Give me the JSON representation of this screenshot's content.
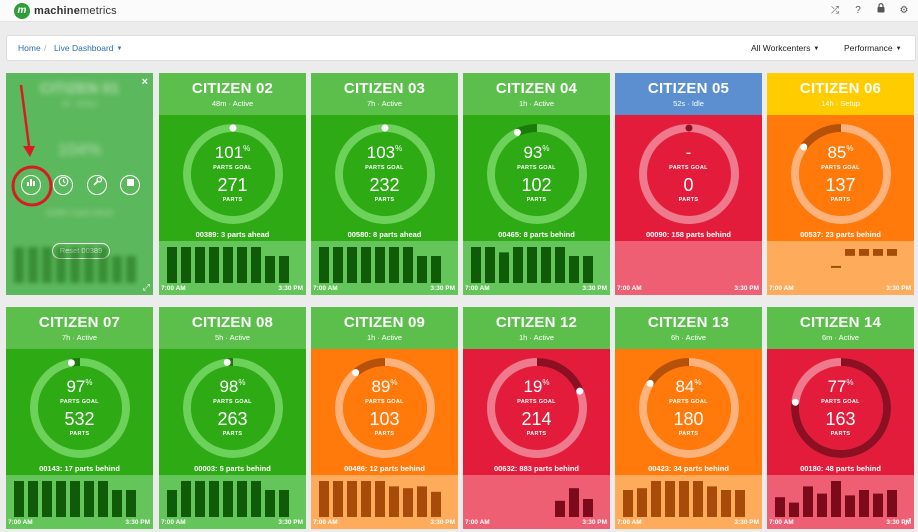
{
  "header": {
    "brand_mark": "m",
    "brand_bold": "machine",
    "brand_light": "metrics",
    "icons": [
      "shuffle-icon",
      "help-icon",
      "lock-icon",
      "gear-icon"
    ]
  },
  "icon_glyphs": {
    "shuffle": "⤮",
    "help": "?",
    "lock": "🔒",
    "gear": "⚙"
  },
  "breadcrumb": {
    "home": "Home",
    "sep": "/",
    "current": "Live Dashboard"
  },
  "filters": {
    "workcenters": "All Workcenters",
    "metric": "Performance"
  },
  "overlay": {
    "ghost_name": "CITIZEN 01",
    "ghost_status": "3h · Active",
    "ghost_pct": "104%",
    "ghost_note": "00389: 3 parts ahead",
    "reset_label": "Reset 00389",
    "close": "×",
    "buttons": [
      "chart-icon",
      "clock-icon",
      "wrench-icon",
      "stop-icon"
    ]
  },
  "annotation": {
    "color": "#d81b24"
  },
  "labels": {
    "parts_goal": "PARTS GOAL",
    "parts": "PARTS",
    "start_time": "7:00 AM",
    "end_time": "3:30 PM"
  },
  "colors": {
    "green": {
      "head": "#5cbf4c",
      "body": "#2eaa15",
      "foot": "#64c55a",
      "bar": "#0f5b08",
      "ring_bg": "#1a7a0a",
      "ring_fg": "#6cd25a"
    },
    "red": {
      "head": "#5b8fd0",
      "body": "#e41c3b",
      "foot": "#ee5f73",
      "bar": "#7d0a1b",
      "ring_bg": "#f07a8d",
      "ring_fg": "#8e0f22"
    },
    "orange": {
      "head": "#ffcc00",
      "body": "#ff7a0b",
      "foot": "#ffab5c",
      "bar": "#a84a08",
      "ring_bg": "#b6510a",
      "ring_fg": "#ffb27a"
    },
    "orange2": {
      "head": "#5cbf4c",
      "body": "#ff7a0b",
      "foot": "#ffab5c",
      "bar": "#a84a08",
      "ring_bg": "#b6510a",
      "ring_fg": "#ffb27a"
    },
    "red2": {
      "head": "#5cbf4c",
      "body": "#e41c3b",
      "foot": "#ee5f73",
      "bar": "#7d0a1b",
      "ring_bg": "#f07a8d",
      "ring_fg": "#8e0f22"
    }
  },
  "tiles": [
    {
      "name": "CITIZEN 02",
      "status": "48m · Active",
      "pct": "101",
      "pct_value": 1.0,
      "parts": "271",
      "note": "00389: 3 parts ahead",
      "theme": "green",
      "bars": [
        1,
        1,
        1,
        1,
        1,
        1,
        1,
        0.75,
        0.75,
        0,
        0,
        0,
        0,
        0,
        0
      ]
    },
    {
      "name": "CITIZEN 03",
      "status": "7h · Active",
      "pct": "103",
      "pct_value": 1.0,
      "parts": "232",
      "note": "00580: 8 parts ahead",
      "theme": "green",
      "bars": [
        1,
        1,
        1,
        1,
        1,
        1,
        1,
        0.75,
        0.75,
        0,
        0,
        0,
        0,
        0,
        0
      ]
    },
    {
      "name": "CITIZEN 04",
      "status": "1h · Active",
      "pct": "93",
      "pct_value": 0.93,
      "parts": "102",
      "note": "00465: 8 parts behind",
      "theme": "green",
      "bars": [
        1,
        1,
        0.85,
        1,
        1,
        1,
        1,
        0.75,
        0.75,
        0,
        0,
        0,
        0,
        0,
        0
      ]
    },
    {
      "name": "CITIZEN 05",
      "status": "52s · Idle",
      "pct": "-",
      "pct_value": 0,
      "parts": "0",
      "note": "00090: 158 parts behind",
      "theme": "red",
      "bars": []
    },
    {
      "name": "CITIZEN 06",
      "status": "14h · Setup",
      "pct": "85",
      "pct_value": 0.85,
      "parts": "137",
      "note": "00537: 23 parts behind",
      "theme": "orange",
      "bars": [
        0,
        0,
        0,
        0,
        0.05,
        0.5,
        0.5,
        0.5,
        0.5,
        0.5,
        0.4,
        0.4,
        0,
        0,
        0
      ],
      "bar_top_align": true
    },
    {
      "name": "CITIZEN 07",
      "status": "7h · Active",
      "pct": "97",
      "pct_value": 0.97,
      "parts": "532",
      "note": "00143: 17 parts behind",
      "theme": "green",
      "bars": [
        1,
        1,
        1,
        1,
        1,
        1,
        1,
        0.75,
        0.75,
        0,
        0,
        0,
        0,
        0,
        0
      ]
    },
    {
      "name": "CITIZEN 08",
      "status": "5h · Active",
      "pct": "98",
      "pct_value": 0.98,
      "parts": "263",
      "note": "00003: 5 parts behind",
      "theme": "green",
      "bars": [
        0.75,
        1,
        1,
        1,
        1,
        1,
        1,
        0.75,
        0.75,
        0,
        0,
        0,
        0,
        0,
        0
      ]
    },
    {
      "name": "CITIZEN 09",
      "status": "1h · Active",
      "pct": "89",
      "pct_value": 0.89,
      "parts": "103",
      "note": "00486: 12 parts behind",
      "theme": "orange2",
      "bars": [
        1,
        1,
        1,
        1,
        1,
        0.85,
        0.8,
        0.85,
        0.7,
        0,
        0,
        0,
        0,
        0,
        0
      ]
    },
    {
      "name": "CITIZEN 12",
      "status": "1h · Active",
      "pct": "19",
      "pct_value": 0.19,
      "parts": "214",
      "note": "00632: 883 parts behind",
      "theme": "red2",
      "bars": [
        0,
        0,
        0,
        0,
        0,
        0,
        0.45,
        0.8,
        0.5,
        0,
        0,
        0,
        0,
        0,
        0
      ]
    },
    {
      "name": "CITIZEN 13",
      "status": "6h · Active",
      "pct": "84",
      "pct_value": 0.84,
      "parts": "180",
      "note": "00423: 34 parts behind",
      "theme": "orange2",
      "bars": [
        0.75,
        0.8,
        1,
        1,
        1,
        1,
        0.85,
        0.75,
        0.75,
        0,
        0,
        0,
        0,
        0,
        0
      ]
    },
    {
      "name": "CITIZEN 14",
      "status": "6m · Active",
      "pct": "77",
      "pct_value": 0.77,
      "parts": "163",
      "note": "00180: 48 parts behind",
      "theme": "red2",
      "bars": [
        0.55,
        0.4,
        0.85,
        0.65,
        1,
        0.6,
        0.75,
        0.65,
        0.75,
        0,
        0,
        0,
        0,
        0,
        0
      ]
    }
  ]
}
